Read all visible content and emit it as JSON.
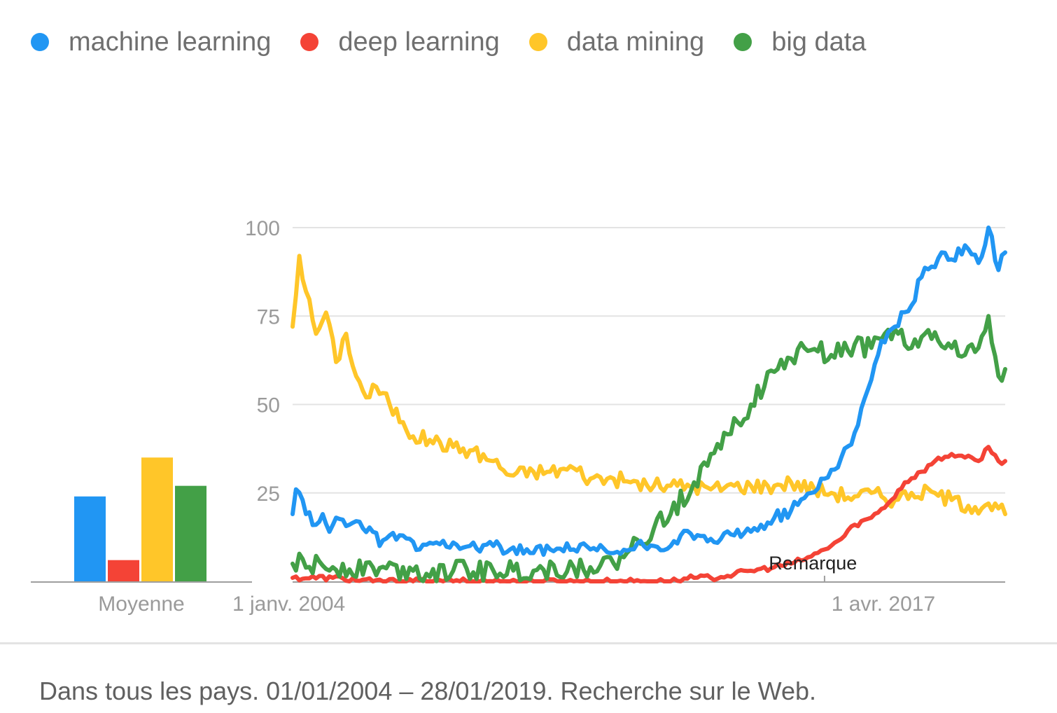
{
  "colors": {
    "machine_learning": "#2196f3",
    "deep_learning": "#f44336",
    "data_mining": "#ffc629",
    "big_data": "#43a047",
    "grid": "#e3e3e3",
    "axis": "#9e9e9e",
    "tick_text": "#9a9a9a"
  },
  "legend": [
    {
      "label": "machine learning",
      "color": "#2196f3",
      "icon": "circle-dot"
    },
    {
      "label": "deep learning",
      "color": "#f44336",
      "icon": "circle-dot"
    },
    {
      "label": "data mining",
      "color": "#ffc629",
      "icon": "circle-dot"
    },
    {
      "label": "big data",
      "color": "#43a047",
      "icon": "circle-dot"
    }
  ],
  "footer": {
    "text": "Dans tous les pays. 01/01/2004 – 28/01/2019. Recherche sur le Web."
  },
  "chart_data": [
    {
      "type": "bar",
      "categories": [
        "Moyenne"
      ],
      "series": [
        {
          "name": "machine learning",
          "values": [
            24
          ]
        },
        {
          "name": "deep learning",
          "values": [
            6
          ]
        },
        {
          "name": "data mining",
          "values": [
            35
          ]
        },
        {
          "name": "big data",
          "values": [
            27
          ]
        }
      ],
      "xlabel": "Moyenne",
      "ylim": [
        0,
        100
      ]
    },
    {
      "type": "line",
      "x_start": "2004-01",
      "x_end": "2019-01",
      "x_tick_labels": [
        {
          "label": "1 janv. 2004",
          "date": "2004-01"
        },
        {
          "label": "1 avr. 2017",
          "date": "2017-04"
        }
      ],
      "y_ticks": [
        25,
        50,
        75,
        100
      ],
      "ylim": [
        0,
        100
      ],
      "grid": true,
      "annotation": {
        "label": "Remarque",
        "date": "2016-01"
      },
      "series": [
        {
          "name": "machine learning",
          "keyframes": [
            [
              "2004-01",
              19
            ],
            [
              "2004-02",
              26
            ],
            [
              "2004-04",
              23
            ],
            [
              "2004-05",
              19
            ],
            [
              "2004-08",
              16
            ],
            [
              "2004-10",
              19
            ],
            [
              "2004-12",
              14
            ],
            [
              "2005-02",
              18
            ],
            [
              "2005-06",
              16
            ],
            [
              "2005-10",
              15
            ],
            [
              "2006-01",
              14
            ],
            [
              "2006-03",
              10
            ],
            [
              "2006-06",
              13
            ],
            [
              "2006-12",
              12
            ],
            [
              "2007-03",
              9
            ],
            [
              "2007-08",
              11
            ],
            [
              "2008-01",
              11
            ],
            [
              "2008-06",
              10
            ],
            [
              "2009-01",
              10
            ],
            [
              "2009-06",
              9
            ],
            [
              "2010-01",
              8
            ],
            [
              "2010-06",
              9
            ],
            [
              "2011-01",
              9
            ],
            [
              "2011-06",
              9
            ],
            [
              "2012-01",
              8
            ],
            [
              "2012-06",
              9
            ],
            [
              "2012-10",
              10
            ],
            [
              "2013-01",
              10
            ],
            [
              "2013-06",
              10
            ],
            [
              "2013-09",
              13
            ],
            [
              "2014-01",
              12
            ],
            [
              "2014-06",
              12
            ],
            [
              "2014-09",
              12
            ],
            [
              "2015-01",
              13
            ],
            [
              "2015-06",
              14
            ],
            [
              "2015-09",
              16
            ],
            [
              "2016-01",
              18
            ],
            [
              "2016-06",
              20
            ],
            [
              "2016-12",
              25
            ],
            [
              "2017-04",
              29
            ],
            [
              "2017-09",
              35
            ],
            [
              "2018-01",
              42
            ],
            [
              "2018-06",
              57
            ],
            [
              "2018-09",
              68
            ],
            [
              "2019-01",
              72
            ],
            [
              "2019-06",
              78
            ],
            [
              "2019-09",
              86
            ],
            [
              "2019-12",
              89
            ],
            [
              "2020-03",
              93
            ],
            [
              "2020-06",
              91
            ],
            [
              "2020-10",
              95
            ],
            [
              "2021-02",
              90
            ],
            [
              "2021-05",
              100
            ],
            [
              "2021-08",
              88
            ],
            [
              "2021-10",
              93
            ]
          ],
          "noise": 1.8
        },
        {
          "name": "deep learning",
          "keyframes": [
            [
              "2004-01",
              1
            ],
            [
              "2005-01",
              1
            ],
            [
              "2006-01",
              0
            ],
            [
              "2008-01",
              0
            ],
            [
              "2010-01",
              0
            ],
            [
              "2012-01",
              0
            ],
            [
              "2013-06",
              0
            ],
            [
              "2014-01",
              1
            ],
            [
              "2014-06",
              1
            ],
            [
              "2015-01",
              2
            ],
            [
              "2015-06",
              3
            ],
            [
              "2016-01",
              4
            ],
            [
              "2016-06",
              5
            ],
            [
              "2016-12",
              7
            ],
            [
              "2017-04",
              9
            ],
            [
              "2017-09",
              12
            ],
            [
              "2018-01",
              16
            ],
            [
              "2018-06",
              18
            ],
            [
              "2018-12",
              23
            ],
            [
              "2019-04",
              28
            ],
            [
              "2019-09",
              31
            ],
            [
              "2020-01",
              34
            ],
            [
              "2020-06",
              36
            ],
            [
              "2020-10",
              35
            ],
            [
              "2021-02",
              34
            ],
            [
              "2021-05",
              38
            ],
            [
              "2021-08",
              34
            ],
            [
              "2021-10",
              34
            ]
          ],
          "noise": 0.8
        },
        {
          "name": "data mining",
          "keyframes": [
            [
              "2004-01",
              72
            ],
            [
              "2004-03",
              92
            ],
            [
              "2004-05",
              82
            ],
            [
              "2004-08",
              70
            ],
            [
              "2004-11",
              76
            ],
            [
              "2005-02",
              62
            ],
            [
              "2005-05",
              70
            ],
            [
              "2005-08",
              58
            ],
            [
              "2005-11",
              52
            ],
            [
              "2006-02",
              55
            ],
            [
              "2006-06",
              50
            ],
            [
              "2006-10",
              45
            ],
            [
              "2007-01",
              41
            ],
            [
              "2007-06",
              40
            ],
            [
              "2008-01",
              38
            ],
            [
              "2008-06",
              37
            ],
            [
              "2009-01",
              34
            ],
            [
              "2009-06",
              30
            ],
            [
              "2010-01",
              31
            ],
            [
              "2010-06",
              31
            ],
            [
              "2011-01",
              32
            ],
            [
              "2011-06",
              29
            ],
            [
              "2012-01",
              29
            ],
            [
              "2012-06",
              28
            ],
            [
              "2013-01",
              27
            ],
            [
              "2013-06",
              27
            ],
            [
              "2014-01",
              27
            ],
            [
              "2014-06",
              26
            ],
            [
              "2015-01",
              27
            ],
            [
              "2015-06",
              27
            ],
            [
              "2016-01",
              27
            ],
            [
              "2016-06",
              28
            ],
            [
              "2017-01",
              26
            ],
            [
              "2017-06",
              25
            ],
            [
              "2018-01",
              24
            ],
            [
              "2018-06",
              25
            ],
            [
              "2019-01",
              23
            ],
            [
              "2019-06",
              25
            ],
            [
              "2020-01",
              25
            ],
            [
              "2020-06",
              23
            ],
            [
              "2021-01",
              21
            ],
            [
              "2021-05",
              22
            ],
            [
              "2021-10",
              19
            ]
          ],
          "noise": 2.2
        },
        {
          "name": "big data",
          "keyframes": [
            [
              "2004-01",
              5
            ],
            [
              "2005-01",
              4
            ],
            [
              "2006-01",
              4
            ],
            [
              "2007-01",
              3
            ],
            [
              "2008-01",
              3
            ],
            [
              "2009-01",
              3
            ],
            [
              "2010-01",
              3
            ],
            [
              "2011-01",
              4
            ],
            [
              "2011-06",
              4
            ],
            [
              "2012-01",
              5
            ],
            [
              "2012-06",
              9
            ],
            [
              "2013-01",
              15
            ],
            [
              "2013-06",
              19
            ],
            [
              "2014-01",
              28
            ],
            [
              "2014-06",
              36
            ],
            [
              "2014-10",
              42
            ],
            [
              "2015-02",
              45
            ],
            [
              "2015-06",
              50
            ],
            [
              "2015-10",
              55
            ],
            [
              "2016-02",
              60
            ],
            [
              "2016-06",
              63
            ],
            [
              "2016-10",
              66
            ],
            [
              "2017-02",
              65
            ],
            [
              "2017-06",
              64
            ],
            [
              "2018-01",
              67
            ],
            [
              "2018-06",
              66
            ],
            [
              "2018-10",
              70
            ],
            [
              "2019-02",
              70
            ],
            [
              "2019-06",
              66
            ],
            [
              "2019-10",
              70
            ],
            [
              "2020-02",
              68
            ],
            [
              "2020-06",
              66
            ],
            [
              "2020-10",
              64
            ],
            [
              "2021-02",
              66
            ],
            [
              "2021-05",
              75
            ],
            [
              "2021-08",
              58
            ],
            [
              "2021-10",
              60
            ]
          ],
          "noise": 3.0
        }
      ]
    }
  ]
}
